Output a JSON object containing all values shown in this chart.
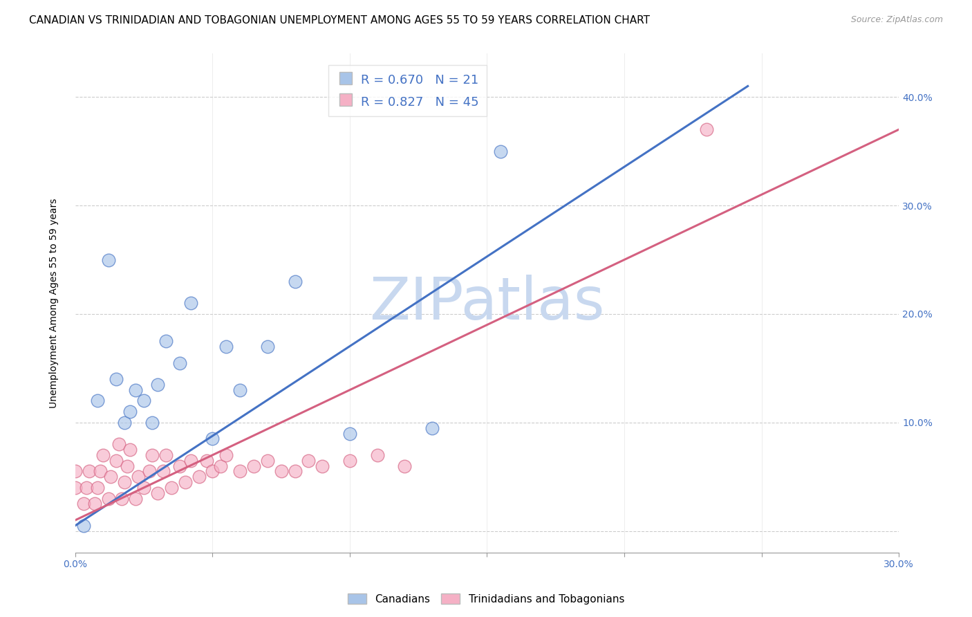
{
  "title": "CANADIAN VS TRINIDADIAN AND TOBAGONIAN UNEMPLOYMENT AMONG AGES 55 TO 59 YEARS CORRELATION CHART",
  "source": "Source: ZipAtlas.com",
  "ylabel": "Unemployment Among Ages 55 to 59 years",
  "xlabel": "",
  "xlim": [
    0.0,
    0.3
  ],
  "ylim": [
    -0.02,
    0.44
  ],
  "xticks": [
    0.0,
    0.05,
    0.1,
    0.15,
    0.2,
    0.25,
    0.3
  ],
  "xtick_labels": [
    "0.0%",
    "",
    "",
    "",
    "",
    "",
    "30.0%"
  ],
  "yticks_right": [
    0.0,
    0.1,
    0.2,
    0.3,
    0.4
  ],
  "ytick_labels_right": [
    "",
    "10.0%",
    "20.0%",
    "30.0%",
    "40.0%"
  ],
  "canadian_R": 0.67,
  "canadian_N": 21,
  "trinidadian_R": 0.827,
  "trinidadian_N": 45,
  "canadian_color": "#a8c4e8",
  "trinidadian_color": "#f5b0c5",
  "canadian_line_color": "#4472c4",
  "trinidadian_line_color": "#d46080",
  "watermark_text": "ZIPatlas",
  "watermark_color": "#c8d8ef",
  "background_color": "#ffffff",
  "title_fontsize": 11,
  "source_fontsize": 9,
  "axis_label_fontsize": 10,
  "tick_fontsize": 10,
  "legend_fontsize": 13,
  "canadian_scatter_x": [
    0.003,
    0.008,
    0.012,
    0.015,
    0.018,
    0.02,
    0.022,
    0.025,
    0.028,
    0.03,
    0.033,
    0.038,
    0.042,
    0.05,
    0.055,
    0.06,
    0.07,
    0.08,
    0.1,
    0.13,
    0.155
  ],
  "canadian_scatter_y": [
    0.005,
    0.12,
    0.25,
    0.14,
    0.1,
    0.11,
    0.13,
    0.12,
    0.1,
    0.135,
    0.175,
    0.155,
    0.21,
    0.085,
    0.17,
    0.13,
    0.17,
    0.23,
    0.09,
    0.095,
    0.35
  ],
  "trinidadian_scatter_x": [
    0.0,
    0.0,
    0.003,
    0.004,
    0.005,
    0.007,
    0.008,
    0.009,
    0.01,
    0.012,
    0.013,
    0.015,
    0.016,
    0.017,
    0.018,
    0.019,
    0.02,
    0.022,
    0.023,
    0.025,
    0.027,
    0.028,
    0.03,
    0.032,
    0.033,
    0.035,
    0.038,
    0.04,
    0.042,
    0.045,
    0.048,
    0.05,
    0.053,
    0.055,
    0.06,
    0.065,
    0.07,
    0.075,
    0.08,
    0.085,
    0.09,
    0.1,
    0.11,
    0.12,
    0.23
  ],
  "trinidadian_scatter_y": [
    0.04,
    0.055,
    0.025,
    0.04,
    0.055,
    0.025,
    0.04,
    0.055,
    0.07,
    0.03,
    0.05,
    0.065,
    0.08,
    0.03,
    0.045,
    0.06,
    0.075,
    0.03,
    0.05,
    0.04,
    0.055,
    0.07,
    0.035,
    0.055,
    0.07,
    0.04,
    0.06,
    0.045,
    0.065,
    0.05,
    0.065,
    0.055,
    0.06,
    0.07,
    0.055,
    0.06,
    0.065,
    0.055,
    0.055,
    0.065,
    0.06,
    0.065,
    0.07,
    0.06,
    0.37
  ],
  "blue_line_x": [
    0.0,
    0.245
  ],
  "blue_line_y": [
    0.005,
    0.41
  ],
  "pink_line_x": [
    0.0,
    0.3
  ],
  "pink_line_y": [
    0.01,
    0.37
  ]
}
